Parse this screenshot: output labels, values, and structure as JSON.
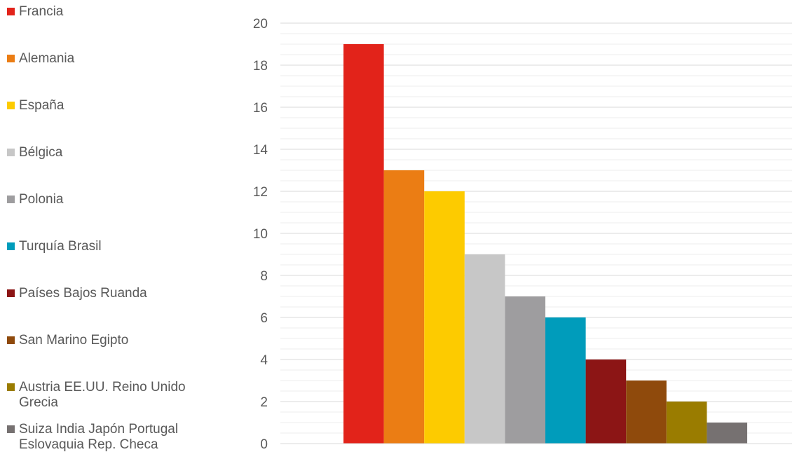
{
  "chart_data": {
    "type": "bar",
    "title": "",
    "xlabel": "",
    "ylabel": "",
    "ylim": [
      0,
      20
    ],
    "yticks": [
      0,
      2,
      4,
      6,
      8,
      10,
      12,
      14,
      16,
      18,
      20
    ],
    "grid": true,
    "legend_position": "left",
    "series": [
      {
        "name": "Francia",
        "value": 19,
        "color": "#e2231a"
      },
      {
        "name": "Alemania",
        "value": 13,
        "color": "#eb7d14"
      },
      {
        "name": "España",
        "value": 12,
        "color": "#fdcb00"
      },
      {
        "name": "Bélgica",
        "value": 9,
        "color": "#c7c7c7"
      },
      {
        "name": "Polonia",
        "value": 7,
        "color": "#9e9d9f"
      },
      {
        "name": "Turquía Brasil",
        "value": 6,
        "color": "#009cbb"
      },
      {
        "name": "Países Bajos Ruanda",
        "value": 4,
        "color": "#8c1515"
      },
      {
        "name": "San Marino Egipto",
        "value": 3,
        "color": "#8f4a0c"
      },
      {
        "name": "Austria EE.UU. Reino Unido Grecia",
        "value": 2,
        "color": "#9a7c00"
      },
      {
        "name": "Suiza India Japón Portugal Eslovaquia Rep. Checa",
        "value": 1,
        "color": "#767171"
      }
    ]
  }
}
